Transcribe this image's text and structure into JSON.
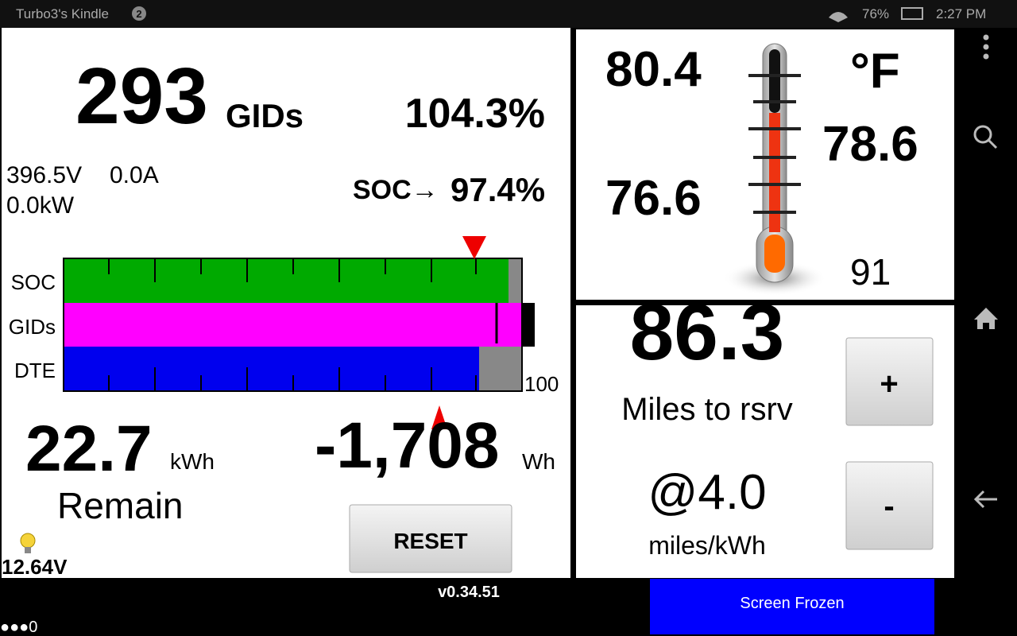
{
  "status_bar": {
    "device": "Turbo3's Kindle",
    "notifications": "2",
    "battery": "76%",
    "time": "2:27 PM"
  },
  "battery_panel": {
    "gids": "293",
    "gids_unit": "GIDs",
    "gids_percent": "104.3%",
    "voltage": "396.5V",
    "current": "0.0A",
    "power": "0.0kW",
    "soc_label": "SOC→",
    "soc": "97.4%",
    "bar_labels": [
      "SOC",
      "GIDs",
      "DTE"
    ],
    "bar_scale": "100",
    "energy": "22.7",
    "energy_unit": "kWh",
    "energy_caption": "Remain",
    "delta": "-1,708",
    "delta_unit": "Wh",
    "reset_button": "RESET",
    "aux_voltage": "12.64V"
  },
  "temperature_panel": {
    "max": "80.4",
    "unit": "°F",
    "avg": "78.6",
    "min": "76.6",
    "ambient": "91"
  },
  "range_panel": {
    "miles": "86.3",
    "miles_caption": "Miles to rsrv",
    "plus_button": "+",
    "efficiency": "@4.0",
    "efficiency_unit": "miles/kWh",
    "minus_button": "-"
  },
  "footer": {
    "version": "v0.34.51",
    "frozen_button": "Screen Frozen",
    "indicator": "●●●0"
  }
}
